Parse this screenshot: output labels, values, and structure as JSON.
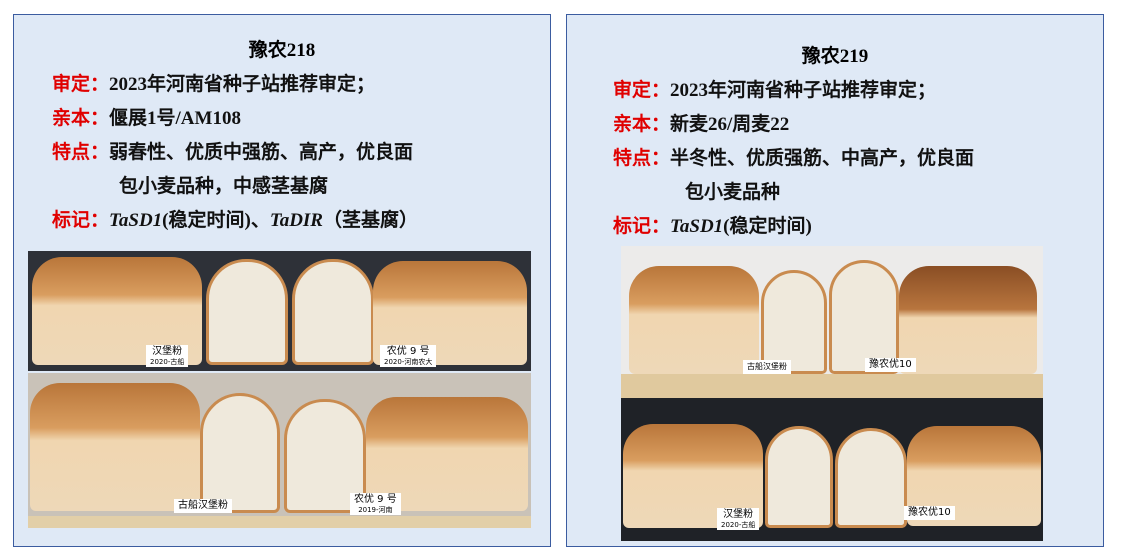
{
  "panels": [
    {
      "title": "豫农218",
      "lines": [
        {
          "key": "审定：",
          "text": "2023年河南省种子站推荐审定；"
        },
        {
          "key": "亲本：",
          "text": "偃展1号/AM108"
        },
        {
          "key": "特点：",
          "text": "弱春性、优质中强筋、高产，优良面"
        },
        {
          "key": "",
          "text": "包小麦品种，中感茎基腐"
        },
        {
          "key": "标记：",
          "m1": "TaSD1",
          "t1": "(稳定时间)、",
          "m2": "TaDIR",
          "t2": "（茎基腐）"
        }
      ],
      "photo_labels": [
        {
          "a": "汉堡粉",
          "b": "2020-古船"
        },
        {
          "a": "农优 9 号",
          "b": "2020-河南农大"
        },
        {
          "a": "古船汉堡粉",
          "b": ""
        },
        {
          "a": "农优 9 号",
          "b": "2019-河南"
        }
      ]
    },
    {
      "title": "豫农219",
      "lines": [
        {
          "key": "审定：",
          "text": "2023年河南省种子站推荐审定；"
        },
        {
          "key": "亲本：",
          "text": "新麦26/周麦22"
        },
        {
          "key": "特点：",
          "text": "半冬性、优质强筋、中高产，优良面"
        },
        {
          "key": "",
          "text": "包小麦品种"
        },
        {
          "key": "标记：",
          "m1": "TaSD1",
          "t1": "(稳定时间)"
        }
      ],
      "photo_labels": [
        {
          "a": "古船汉堡粉",
          "b": ""
        },
        {
          "a": "豫农优10",
          "b": ""
        },
        {
          "a": "汉堡粉",
          "b": "2020-古船"
        },
        {
          "a": "豫农优10",
          "b": ""
        }
      ]
    }
  ],
  "colors": {
    "panel_bg": "#dfe9f6",
    "border": "#3b5ca0",
    "key": "#e00000"
  }
}
